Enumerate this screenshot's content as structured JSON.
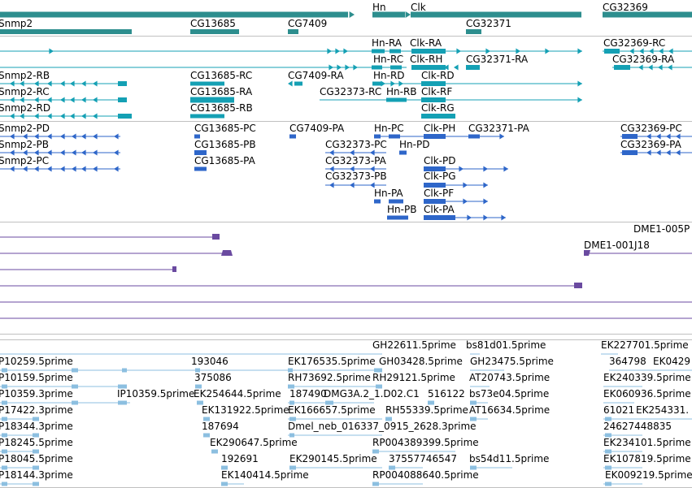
{
  "colors": {
    "gene": "#2d8e8e",
    "transcript": "#14a0b4",
    "protein": "#2e66c9",
    "clone": "#6a4aa0",
    "est": "#8cbfe0",
    "separator": "#c0c0c0"
  },
  "genes": [
    "Snmp2",
    "CG13685",
    "CG7409",
    "Hn",
    "Clk",
    "CG32371",
    "CG32369"
  ],
  "transcripts": [
    "Snmp2-RB",
    "Snmp2-RC",
    "Snmp2-RD",
    "CG13685-RC",
    "CG13685-RA",
    "CG13685-RB",
    "CG7409-RA",
    "CG32373-RC",
    "Hn-RA",
    "Hn-RC",
    "Hn-RD",
    "Hn-RB",
    "Clk-RA",
    "Clk-RH",
    "Clk-RD",
    "Clk-RF",
    "Clk-RG",
    "CG32371-RA",
    "CG32369-RC",
    "CG32369-RA"
  ],
  "proteins": [
    "Snmp2-PD",
    "Snmp2-PB",
    "Snmp2-PC",
    "CG13685-PC",
    "CG13685-PB",
    "CG13685-PA",
    "CG7409-PA",
    "CG32373-PC",
    "CG32373-PA",
    "CG32373-PB",
    "Hn-PC",
    "Hn-PD",
    "Hn-PA",
    "Hn-PB",
    "Clk-PH",
    "Clk-PD",
    "Clk-PG",
    "Clk-PF",
    "Clk-PA",
    "CG32371-PA",
    "CG32369-PC",
    "CG32369-PA"
  ],
  "clones": [
    "DME1-005P",
    "DME1-001J18"
  ],
  "ests": [
    "GH22611.5prime",
    "bs81d01.5prime",
    "EK227701.5prime",
    "P10259.5prime",
    "193046",
    "EK176535.5prime",
    "GH03428.5prime",
    "GH23475.5prime",
    "364798",
    "EK0429",
    "P10159.5prime",
    "375086",
    "RH73692.5prime",
    "RH29121.5prime",
    "AT20743.5prime",
    "EK240339.5prime",
    "P10359.3prime",
    "IP10359.5prime",
    "EK254644.5prime",
    "187490",
    "DMG3A.2_1.D02.C1",
    "516122",
    "bs73e04.5prime",
    "EK060936.5prime",
    "P17422.3prime",
    "EK131922.5prime",
    "EK166657.5prime",
    "RH55339.5prime",
    "AT16634.5prime",
    "61021",
    "EK254331.",
    "P18344.3prime",
    "187694",
    "Dmel_neb_016337_0915_2628.3prime",
    "24627448835",
    "P18245.5prime",
    "EK290647.5prime",
    "RP004389399.5prime",
    "EK234101.5prime",
    "P18045.5prime",
    "192691",
    "EK290145.5prime",
    "37557746547",
    "bs54d11.5prime",
    "EK107819.5prime",
    "P18144.3prime",
    "EK140414.5prime",
    "RP004088640.5prime",
    "EK009219.5prime"
  ]
}
